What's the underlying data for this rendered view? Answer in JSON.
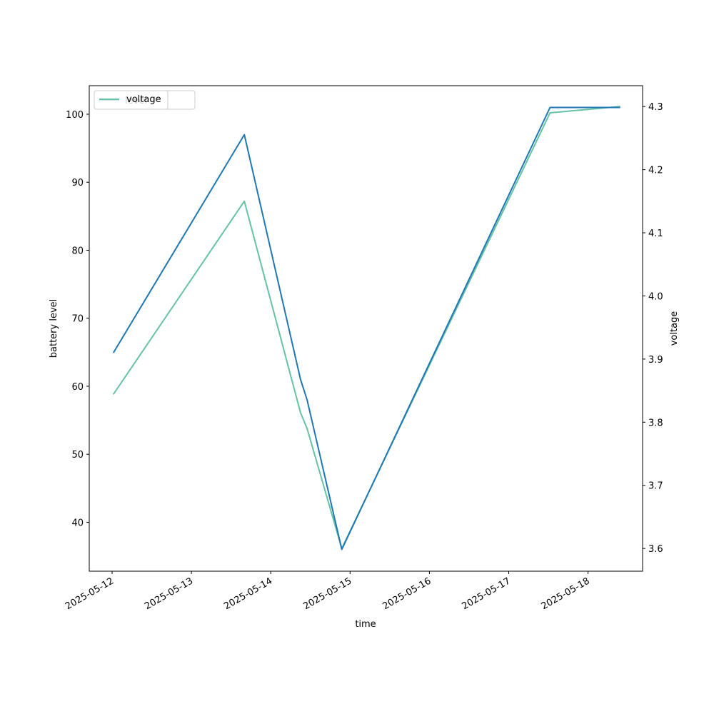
{
  "chart_data": {
    "type": "line",
    "title": "",
    "xlabel": "time",
    "ylabel_left": "battery level",
    "ylabel_right": "voltage",
    "x_ticks": [
      "2025-05-12",
      "2025-05-13",
      "2025-05-14",
      "2025-05-15",
      "2025-05-16",
      "2025-05-17",
      "2025-05-18"
    ],
    "ylim_left": [
      32.8,
      104.2
    ],
    "ylim_right": [
      3.564,
      4.333
    ],
    "yticks_left": [
      "40",
      "50",
      "60",
      "70",
      "80",
      "90",
      "100"
    ],
    "yticks_right": [
      "3.6",
      "3.7",
      "3.8",
      "3.9",
      "4.0",
      "4.1",
      "4.2",
      "4.3"
    ],
    "grid": false,
    "legend_placement": "upper-left",
    "series": [
      {
        "name": "level",
        "axis": "left",
        "color": "#1f77b4",
        "points": [
          {
            "x": "2025-05-12 00:30",
            "y": 65
          },
          {
            "x": "2025-05-13 16:00",
            "y": 97
          },
          {
            "x": "2025-05-14 09:00",
            "y": 61
          },
          {
            "x": "2025-05-14 11:00",
            "y": 58
          },
          {
            "x": "2025-05-14 21:30",
            "y": 36
          },
          {
            "x": "2025-05-17 12:30",
            "y": 101
          },
          {
            "x": "2025-05-18 09:30",
            "y": 101
          }
        ]
      },
      {
        "name": "voltage",
        "axis": "right",
        "color": "#66c2a5",
        "points": [
          {
            "x": "2025-05-12 00:30",
            "y": 3.845
          },
          {
            "x": "2025-05-13 16:00",
            "y": 4.15
          },
          {
            "x": "2025-05-14 09:00",
            "y": 3.815
          },
          {
            "x": "2025-05-14 11:00",
            "y": 3.79
          },
          {
            "x": "2025-05-14 21:30",
            "y": 3.6
          },
          {
            "x": "2025-05-17 12:30",
            "y": 4.29
          },
          {
            "x": "2025-05-18 09:30",
            "y": 4.3
          }
        ]
      }
    ]
  }
}
